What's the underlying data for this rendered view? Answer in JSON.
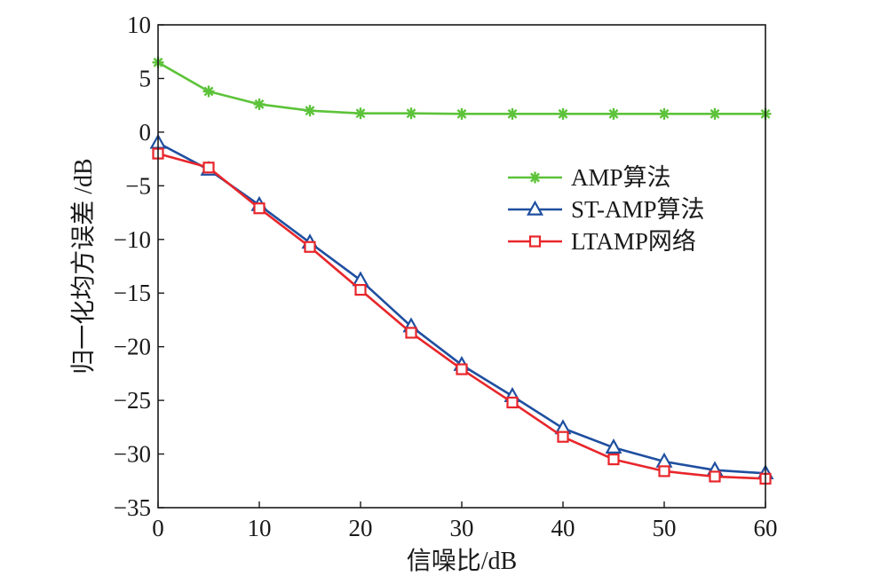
{
  "chart_data": {
    "type": "line",
    "xlabel": "信噪比/dB",
    "ylabel": "归一化均方误差 /dB",
    "xlim": [
      0,
      60
    ],
    "ylim": [
      -35,
      10
    ],
    "x_ticks": [
      0,
      10,
      20,
      30,
      40,
      50,
      60
    ],
    "y_ticks": [
      10,
      5,
      0,
      -5,
      -10,
      -15,
      -20,
      -25,
      -30,
      -35
    ],
    "x_tick_labels": [
      "0",
      "10",
      "20",
      "30",
      "40",
      "50",
      "60"
    ],
    "y_tick_labels": [
      "10",
      "5",
      "0",
      "−5",
      "−10",
      "−15",
      "−20",
      "−25",
      "−30",
      "−35"
    ],
    "grid": false,
    "legend_position": "right",
    "x": [
      0,
      5,
      10,
      15,
      20,
      25,
      30,
      35,
      40,
      45,
      50,
      55,
      60
    ],
    "series": [
      {
        "name": "AMP算法",
        "color": "#5dc33a",
        "marker": "star",
        "values": [
          6.5,
          3.8,
          2.6,
          2.0,
          1.75,
          1.75,
          1.7,
          1.7,
          1.7,
          1.7,
          1.7,
          1.7,
          1.7
        ]
      },
      {
        "name": "ST-AMP算法",
        "color": "#1f4fa0",
        "marker": "triangle",
        "values": [
          -1.0,
          -3.5,
          -6.8,
          -10.3,
          -13.8,
          -18.1,
          -21.7,
          -24.6,
          -27.6,
          -29.4,
          -30.7,
          -31.5,
          -31.8
        ]
      },
      {
        "name": "LTAMP网络",
        "color": "#e8262b",
        "marker": "square",
        "values": [
          -2.0,
          -3.3,
          -7.1,
          -10.7,
          -14.7,
          -18.7,
          -22.1,
          -25.2,
          -28.4,
          -30.5,
          -31.6,
          -32.1,
          -32.3
        ]
      }
    ]
  }
}
